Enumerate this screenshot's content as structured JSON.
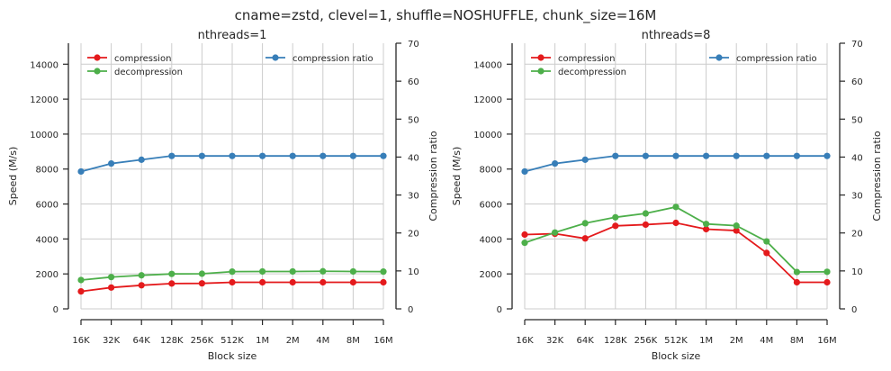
{
  "suptitle": "cname=zstd, clevel=1, shuffle=NOSHUFFLE, chunk_size=16M",
  "colors": {
    "compression": "#e41a1c",
    "decompression": "#4daf4a",
    "ratio": "#377eb8",
    "grid": "#cccccc",
    "axis": "#262626"
  },
  "chart_data": [
    {
      "type": "line",
      "title": "nthreads=1",
      "xlabel": "Block size",
      "ylabel": "Speed (M/s)",
      "ylabel_right": "Compression ratio",
      "categories": [
        "16K",
        "32K",
        "64K",
        "128K",
        "256K",
        "512K",
        "1M",
        "2M",
        "4M",
        "8M",
        "16M"
      ],
      "ylim": [
        0,
        15200
      ],
      "yticks": [
        0,
        2000,
        4000,
        6000,
        8000,
        10000,
        12000,
        14000
      ],
      "ylim_right": [
        0,
        70
      ],
      "yticks_right": [
        0,
        10,
        20,
        30,
        40,
        50,
        60,
        70
      ],
      "grid": true,
      "legend_left": [
        "compression",
        "decompression"
      ],
      "legend_right": [
        "compression ratio"
      ],
      "series": [
        {
          "name": "compression",
          "axis": "left",
          "values": [
            1000,
            1220,
            1350,
            1450,
            1460,
            1520,
            1520,
            1520,
            1520,
            1520,
            1520
          ]
        },
        {
          "name": "decompression",
          "axis": "left",
          "values": [
            1650,
            1820,
            1920,
            2000,
            2010,
            2130,
            2140,
            2140,
            2150,
            2140,
            2130
          ]
        },
        {
          "name": "compression ratio",
          "axis": "right",
          "values": [
            36.2,
            38.3,
            39.3,
            40.3,
            40.3,
            40.3,
            40.3,
            40.3,
            40.3,
            40.3,
            40.3
          ]
        }
      ]
    },
    {
      "type": "line",
      "title": "nthreads=8",
      "xlabel": "Block size",
      "ylabel": "Speed (M/s)",
      "ylabel_right": "Compression ratio",
      "categories": [
        "16K",
        "32K",
        "64K",
        "128K",
        "256K",
        "512K",
        "1M",
        "2M",
        "4M",
        "8M",
        "16M"
      ],
      "ylim": [
        0,
        15200
      ],
      "yticks": [
        0,
        2000,
        4000,
        6000,
        8000,
        10000,
        12000,
        14000
      ],
      "ylim_right": [
        0,
        70
      ],
      "yticks_right": [
        0,
        10,
        20,
        30,
        40,
        50,
        60,
        70
      ],
      "grid": true,
      "legend_left": [
        "compression",
        "decompression"
      ],
      "legend_right": [
        "compression ratio"
      ],
      "series": [
        {
          "name": "compression",
          "axis": "left",
          "values": [
            4250,
            4300,
            4030,
            4750,
            4820,
            4920,
            4560,
            4480,
            3200,
            1520,
            1520
          ]
        },
        {
          "name": "decompression",
          "axis": "left",
          "values": [
            3780,
            4370,
            4900,
            5240,
            5460,
            5830,
            4860,
            4760,
            3860,
            2110,
            2120
          ]
        },
        {
          "name": "compression ratio",
          "axis": "right",
          "values": [
            36.2,
            38.3,
            39.3,
            40.3,
            40.3,
            40.3,
            40.3,
            40.3,
            40.3,
            40.3,
            40.3
          ]
        }
      ]
    }
  ]
}
